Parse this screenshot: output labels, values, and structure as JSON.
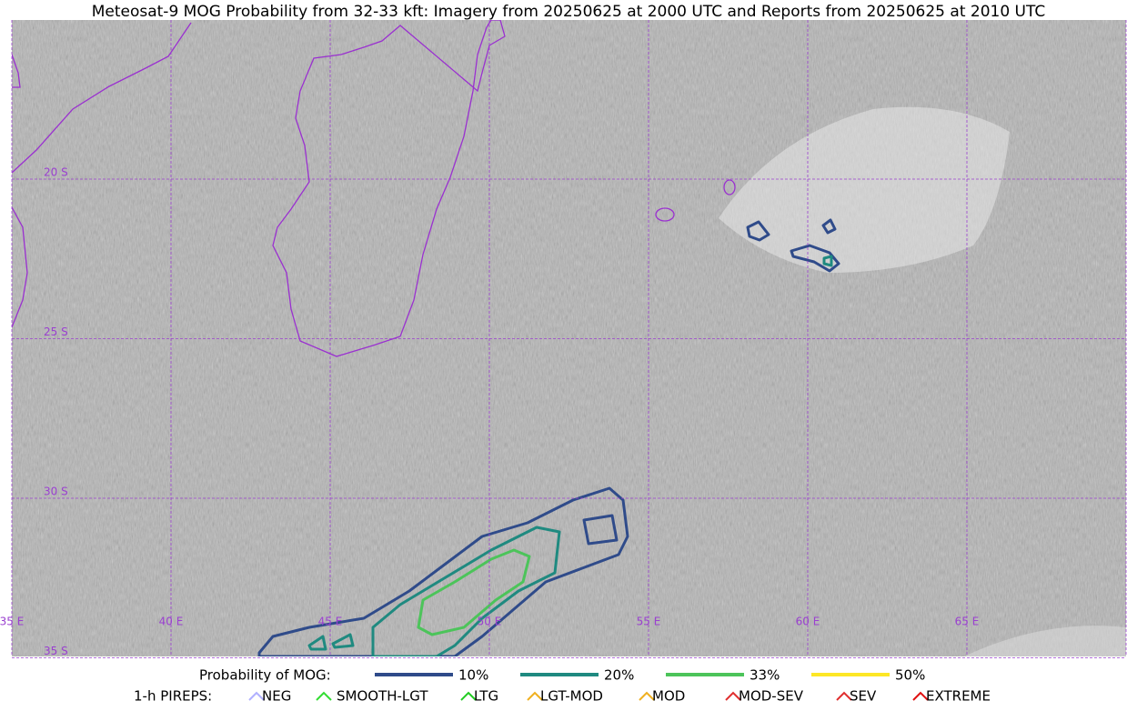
{
  "title": "Meteosat-9 MOG Probability from 32-33 kft: Imagery from 20250625 at 2000 UTC and Reports from 20250625 at 2010 UTC",
  "lat_labels": [
    "20 S",
    "25 S",
    "30 S",
    "35 S"
  ],
  "lon_labels": [
    "35 E",
    "40 E",
    "45 E",
    "50 E",
    "55 E",
    "60 E",
    "65 E"
  ],
  "legend": {
    "title": "Probability of MOG:",
    "items": [
      {
        "label": "10%",
        "color": "#2f4b8a"
      },
      {
        "label": "20%",
        "color": "#1f8a80"
      },
      {
        "label": "33%",
        "color": "#4cc45a"
      },
      {
        "label": "50%",
        "color": "#fde725"
      }
    ]
  },
  "pireps": {
    "title": "1-h PIREPS:",
    "items": [
      {
        "label": "NEG",
        "color": "#b0b0ff"
      },
      {
        "label": "SMOOTH-LGT",
        "color": "#33dd33"
      },
      {
        "label": "LTG",
        "color": "#22cc22"
      },
      {
        "label": "LGT-MOD",
        "color": "#f0b020"
      },
      {
        "label": "MOD",
        "color": "#f0b020"
      },
      {
        "label": "MOD-SEV",
        "color": "#e03030"
      },
      {
        "label": "SEV",
        "color": "#e03030"
      },
      {
        "label": "EXTREME",
        "color": "#e01010"
      }
    ]
  }
}
